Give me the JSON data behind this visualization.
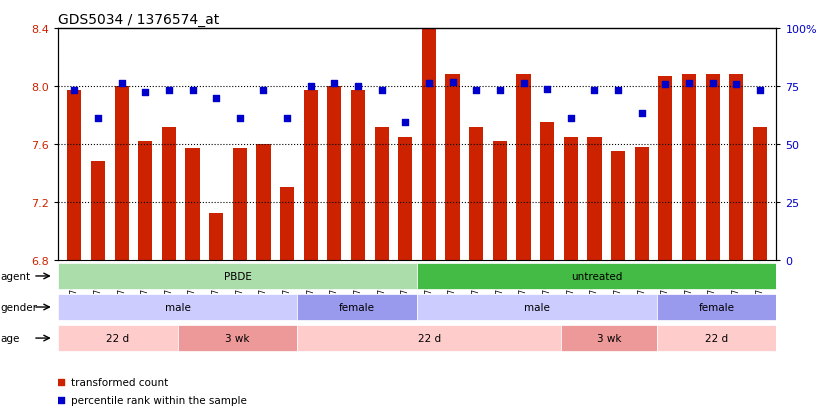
{
  "title": "GDS5034 / 1376574_at",
  "samples": [
    "GSM796783",
    "GSM796784",
    "GSM796785",
    "GSM796786",
    "GSM796787",
    "GSM796806",
    "GSM796807",
    "GSM796808",
    "GSM796809",
    "GSM796810",
    "GSM796796",
    "GSM796797",
    "GSM796798",
    "GSM796799",
    "GSM796800",
    "GSM796781",
    "GSM796788",
    "GSM796789",
    "GSM796790",
    "GSM796791",
    "GSM796801",
    "GSM796802",
    "GSM796803",
    "GSM796804",
    "GSM796805",
    "GSM796782",
    "GSM796792",
    "GSM796793",
    "GSM796794",
    "GSM796795"
  ],
  "bar_values": [
    7.97,
    7.48,
    8.0,
    7.62,
    7.72,
    7.57,
    7.12,
    7.57,
    7.6,
    7.3,
    7.97,
    8.0,
    7.97,
    7.72,
    7.65,
    8.4,
    8.08,
    7.72,
    7.62,
    8.08,
    7.75,
    7.65,
    7.65,
    7.55,
    7.58,
    8.07,
    8.08,
    8.08,
    8.08,
    7.72
  ],
  "dot_values": [
    7.97,
    7.78,
    8.02,
    7.96,
    7.97,
    7.97,
    7.92,
    7.78,
    7.97,
    7.78,
    8.0,
    8.02,
    8.0,
    7.97,
    7.75,
    8.02,
    8.03,
    7.97,
    7.97,
    8.02,
    7.98,
    7.78,
    7.97,
    7.97,
    7.81,
    8.01,
    8.02,
    8.02,
    8.01,
    7.97
  ],
  "ylim": [
    6.8,
    8.4
  ],
  "yticks": [
    6.8,
    7.2,
    7.6,
    8.0,
    8.4
  ],
  "ytick_labels": [
    "6.8",
    "7.2",
    "7.6",
    "8.0",
    "8.4"
  ],
  "right_yticks": [
    0,
    25,
    50,
    75,
    100
  ],
  "right_ytick_labels": [
    "0",
    "25",
    "50",
    "75",
    "100%"
  ],
  "bar_color": "#cc2200",
  "dot_color": "#0000cc",
  "background_color": "#ffffff",
  "agent_groups": [
    {
      "label": "PBDE",
      "start": 0,
      "end": 15,
      "color": "#aaddaa"
    },
    {
      "label": "untreated",
      "start": 15,
      "end": 30,
      "color": "#44bb44"
    }
  ],
  "gender_groups": [
    {
      "label": "male",
      "start": 0,
      "end": 10,
      "color": "#ccccff"
    },
    {
      "label": "female",
      "start": 10,
      "end": 15,
      "color": "#9999ee"
    },
    {
      "label": "male",
      "start": 15,
      "end": 25,
      "color": "#ccccff"
    },
    {
      "label": "female",
      "start": 25,
      "end": 30,
      "color": "#9999ee"
    }
  ],
  "age_groups": [
    {
      "label": "22 d",
      "start": 0,
      "end": 5,
      "color": "#ffcccc"
    },
    {
      "label": "3 wk",
      "start": 5,
      "end": 10,
      "color": "#ee9999"
    },
    {
      "label": "22 d",
      "start": 10,
      "end": 21,
      "color": "#ffcccc"
    },
    {
      "label": "3 wk",
      "start": 21,
      "end": 25,
      "color": "#ee9999"
    },
    {
      "label": "22 d",
      "start": 25,
      "end": 30,
      "color": "#ffcccc"
    }
  ],
  "legend_items": [
    {
      "label": "transformed count",
      "color": "#cc2200",
      "marker": "s"
    },
    {
      "label": "percentile rank within the sample",
      "color": "#0000cc",
      "marker": "s"
    }
  ]
}
